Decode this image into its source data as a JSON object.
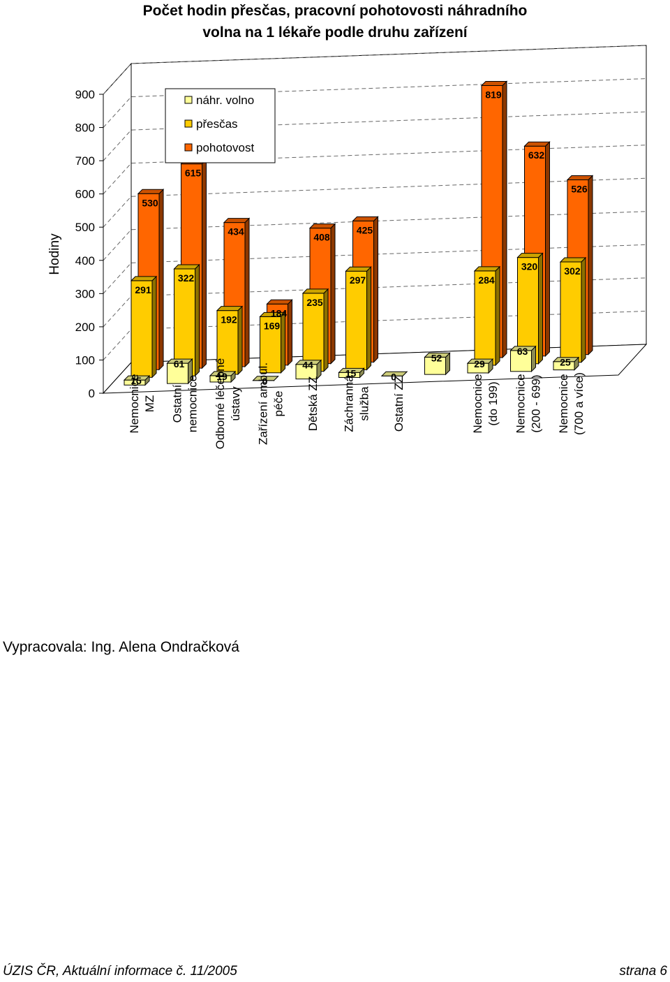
{
  "title_line1": "Počet hodin přesčas, pracovní pohotovosti  náhradního",
  "title_line2": "volna na 1 lékaře podle druhu zařízení",
  "author": "Vypracovala: Ing. Alena Ondračková",
  "footer_left": "ÚZIS ČR, Aktuální informace č. 11/2005",
  "footer_right": "strana 6",
  "chart_data": {
    "type": "bar",
    "ylabel": "Hodiny",
    "ylim": [
      0,
      900
    ],
    "yticks": [
      0,
      100,
      200,
      300,
      400,
      500,
      600,
      700,
      800,
      900
    ],
    "grid": true,
    "legend_placement": "top-left",
    "categories": [
      [
        "Nemocnice",
        "MZ"
      ],
      [
        "Ostatní",
        "nemocnice"
      ],
      [
        "Odborné léčebné",
        "ústavy"
      ],
      [
        "Zařízení ambul.",
        "péče"
      ],
      [
        "Dětská ZZ"
      ],
      [
        "Záchranná",
        "služba"
      ],
      [
        "Ostatní ZZ"
      ],
      [],
      [
        "Nemocnice",
        "(do 199)"
      ],
      [
        "Nemocnice",
        "(200 - 699)"
      ],
      [
        "Nemocnice",
        "(700 a více)"
      ]
    ],
    "series": [
      {
        "name": "náhr. volno",
        "color": "#ffff99",
        "values": [
          15,
          61,
          19,
          0,
          44,
          15,
          0,
          52,
          29,
          63,
          25
        ]
      },
      {
        "name": "přesčas",
        "color": "#ffcc00",
        "values": [
          291,
          322,
          192,
          169,
          235,
          297,
          0,
          0,
          284,
          320,
          302
        ]
      },
      {
        "name": "pohotovost",
        "color": "#ff6600",
        "values": [
          530,
          615,
          434,
          184,
          408,
          425,
          0,
          0,
          819,
          632,
          526
        ]
      }
    ],
    "data_labels": [
      [
        "15",
        "61",
        "19",
        "0",
        "44",
        "15",
        "0",
        "52",
        "29",
        "63",
        "25"
      ],
      [
        "291",
        "322",
        "192",
        "169",
        "235",
        "297",
        "",
        "",
        "284",
        "320",
        "302"
      ],
      [
        "530",
        "615",
        "434",
        "184",
        "408",
        "425",
        "",
        "",
        "819",
        "632",
        "526"
      ]
    ]
  }
}
